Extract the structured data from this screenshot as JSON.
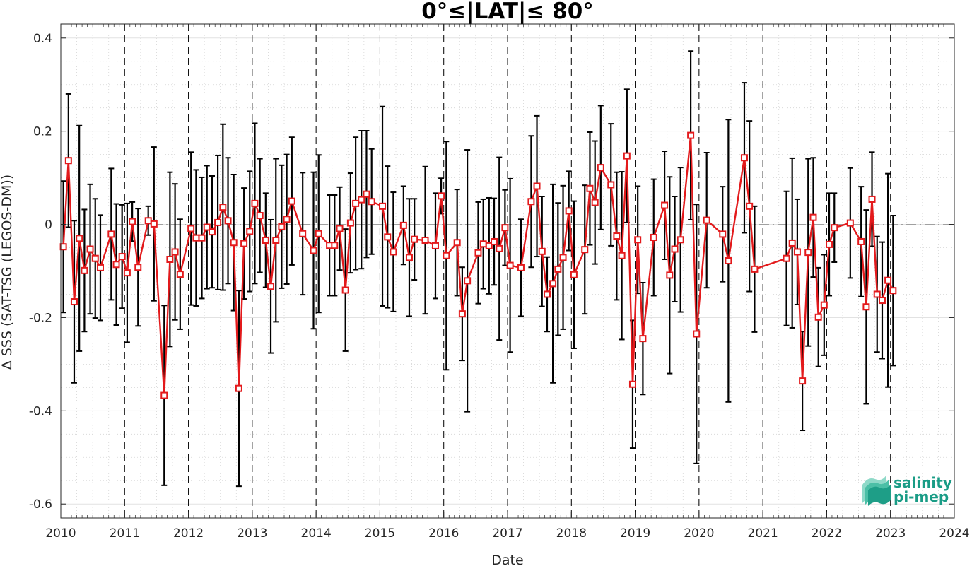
{
  "chart_data": {
    "type": "line",
    "title": "0°≤|LAT|≤ 80°",
    "xlabel": "Date",
    "ylabel": "Δ SSS (SAT-TSG (LEGOS-DM))",
    "xlim": [
      2010,
      2024
    ],
    "ylim": [
      -0.63,
      0.43
    ],
    "xticks": [
      "2010",
      "2011",
      "2012",
      "2013",
      "2014",
      "2015",
      "2016",
      "2017",
      "2018",
      "2019",
      "2020",
      "2021",
      "2022",
      "2023",
      "2024"
    ],
    "yticks": [
      {
        "value": 0.4,
        "label": "0.4"
      },
      {
        "value": 0.2,
        "label": "0.2"
      },
      {
        "value": 0,
        "label": "0"
      },
      {
        "value": -0.2,
        "label": "-0.2"
      },
      {
        "value": -0.4,
        "label": "-0.4"
      },
      {
        "value": -0.6,
        "label": "-0.6"
      }
    ],
    "grid": true,
    "year_boundaries_dashed": true,
    "zero_reference_line": true,
    "line_color": "#e31a1c",
    "errorbar_color": "#000000",
    "marker": "square",
    "series": [
      {
        "x": [
          2010.04,
          2010.12,
          2010.21,
          2010.29,
          2010.37,
          2010.46,
          2010.54,
          2010.62,
          2010.79,
          2010.87,
          2010.96,
          2011.04,
          2011.12,
          2011.21,
          2011.37,
          2011.46,
          2011.62,
          2011.71,
          2011.79,
          2011.87,
          2012.04,
          2012.12,
          2012.21,
          2012.29,
          2012.37,
          2012.46,
          2012.54,
          2012.62,
          2012.71,
          2012.79,
          2012.87,
          2012.96,
          2013.04,
          2013.12,
          2013.21,
          2013.29,
          2013.37,
          2013.46,
          2013.54,
          2013.62,
          2013.79,
          2013.96,
          2014.04,
          2014.21,
          2014.29,
          2014.37,
          2014.46,
          2014.54,
          2014.62,
          2014.71,
          2014.79,
          2014.87,
          2015.04,
          2015.12,
          2015.21,
          2015.37,
          2015.46,
          2015.54,
          2015.71,
          2015.87,
          2015.96,
          2016.04,
          2016.21,
          2016.29,
          2016.37,
          2016.54,
          2016.62,
          2016.71,
          2016.79,
          2016.87,
          2016.96,
          2017.04,
          2017.21,
          2017.37,
          2017.46,
          2017.54,
          2017.62,
          2017.71,
          2017.79,
          2017.87,
          2017.96,
          2018.04,
          2018.21,
          2018.29,
          2018.37,
          2018.46,
          2018.62,
          2018.71,
          2018.79,
          2018.87,
          2018.96,
          2019.04,
          2019.12,
          2019.29,
          2019.46,
          2019.54,
          2019.62,
          2019.71,
          2019.87,
          2019.96,
          2020.12,
          2020.37,
          2020.46,
          2020.71,
          2020.79,
          2020.87,
          2021.37,
          2021.46,
          2021.54,
          2021.62,
          2021.71,
          2021.79,
          2021.87,
          2021.96,
          2022.04,
          2022.12,
          2022.37,
          2022.54,
          2022.62,
          2022.71,
          2022.79,
          2022.87,
          2022.96,
          2023.04
        ],
        "y": [
          -0.048,
          0.137,
          -0.166,
          -0.03,
          -0.099,
          -0.053,
          -0.073,
          -0.093,
          -0.021,
          -0.086,
          -0.069,
          -0.104,
          0.006,
          -0.092,
          0.008,
          0.001,
          -0.367,
          -0.075,
          -0.059,
          -0.107,
          -0.009,
          -0.029,
          -0.029,
          -0.006,
          -0.016,
          0.004,
          0.037,
          0.008,
          -0.039,
          -0.352,
          -0.041,
          -0.015,
          0.045,
          0.019,
          -0.034,
          -0.133,
          -0.034,
          -0.005,
          0.011,
          0.05,
          -0.02,
          -0.056,
          -0.02,
          -0.045,
          -0.045,
          -0.009,
          -0.141,
          0.003,
          0.045,
          0.053,
          0.065,
          0.049,
          0.039,
          -0.027,
          -0.059,
          -0.002,
          -0.071,
          -0.032,
          -0.034,
          -0.046,
          0.061,
          -0.067,
          -0.039,
          -0.192,
          -0.121,
          -0.061,
          -0.042,
          -0.046,
          -0.037,
          -0.052,
          -0.007,
          -0.088,
          -0.093,
          0.049,
          0.082,
          -0.058,
          -0.15,
          -0.127,
          -0.096,
          -0.071,
          0.029,
          -0.108,
          -0.054,
          0.077,
          0.047,
          0.122,
          0.085,
          -0.025,
          -0.067,
          0.147,
          -0.343,
          -0.033,
          -0.245,
          -0.028,
          0.041,
          -0.109,
          -0.053,
          -0.033,
          0.191,
          -0.235,
          0.009,
          -0.021,
          -0.078,
          0.143,
          0.039,
          -0.096,
          -0.073,
          -0.04,
          -0.059,
          -0.336,
          -0.06,
          0.015,
          -0.199,
          -0.173,
          -0.043,
          -0.007,
          0.003,
          -0.037,
          -0.177,
          0.054,
          -0.15,
          -0.163,
          -0.12,
          -0.142
        ],
        "err": [
          0.141,
          0.143,
          0.174,
          0.242,
          0.131,
          0.139,
          0.128,
          0.113,
          0.141,
          0.13,
          0.111,
          0.149,
          0.042,
          0.126,
          0.031,
          0.165,
          0.193,
          0.187,
          0.146,
          0.118,
          0.164,
          0.146,
          0.13,
          0.132,
          0.12,
          0.144,
          0.178,
          0.135,
          0.146,
          0.21,
          0.119,
          0.129,
          0.172,
          0.122,
          0.101,
          0.143,
          0.175,
          0.132,
          0.139,
          0.137,
          0.131,
          0.168,
          0.169,
          0.108,
          0.108,
          0.089,
          0.131,
          0.107,
          0.142,
          0.148,
          0.136,
          0.113,
          0.214,
          0.152,
          0.128,
          0.084,
          0.126,
          0.087,
          0.158,
          0.113,
          0.038,
          0.245,
          0.114,
          0.1,
          0.281,
          0.109,
          0.096,
          0.103,
          0.093,
          0.196,
          0.081,
          0.186,
          0.104,
          0.141,
          0.151,
          0.118,
          0.08,
          0.213,
          0.142,
          0.154,
          0.085,
          0.158,
          0.138,
          0.121,
          0.132,
          0.133,
          0.131,
          0.137,
          0.18,
          0.143,
          0.137,
          0.115,
          0.12,
          0.125,
          0.116,
          0.211,
          0.113,
          0.155,
          0.181,
          0.278,
          0.145,
          0.102,
          0.303,
          0.161,
          0.183,
          0.135,
          0.144,
          0.182,
          0.113,
          0.106,
          0.201,
          0.128,
          0.106,
          0.108,
          0.11,
          0.074,
          0.118,
          0.118,
          0.208,
          0.101,
          0.124,
          0.125,
          0.229,
          0.161
        ]
      }
    ]
  },
  "logo": {
    "line1": "salinity",
    "line2": "pi-mep",
    "text_color": "#1a9c86"
  }
}
